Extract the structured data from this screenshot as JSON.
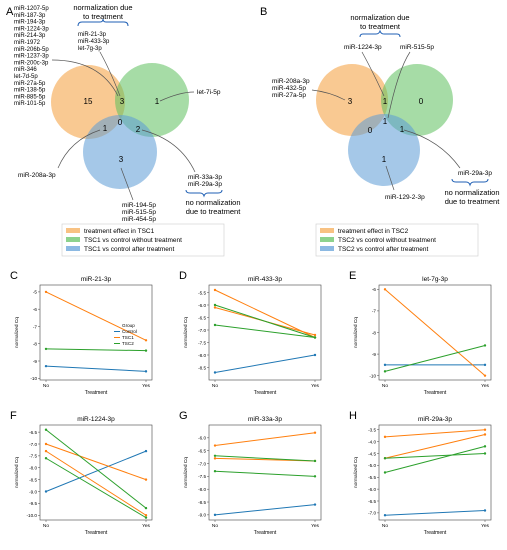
{
  "panelA": {
    "letter": "A",
    "mirna_list": [
      "miR-1207-5p",
      "miR-187-3p",
      "miR-194-3p",
      "miR-1224-3p",
      "miR-214-3p",
      "miR-1972",
      "miR-206b-5p",
      "miR-1237-3p",
      "miR-200c-3p",
      "miR-346",
      "let-7d-5p",
      "miR-27a-5p",
      "miR-138-5p",
      "miR-885-5p",
      "miR-101-5p"
    ],
    "norm_label": [
      "normalization due",
      "to treatment"
    ],
    "norm_list": [
      "miR-21-3p",
      "miR-433-3p",
      "let-7g-3p"
    ],
    "counts": {
      "orange_only": "15",
      "orange_green": "3",
      "green_only": "1",
      "orange_blue": "1",
      "center": "0",
      "green_blue": "2",
      "blue_only": "3"
    },
    "callout_let7i": "let-7i-5p",
    "callout_208a": "miR-208a-3p",
    "blue_list": [
      "miR-194-5p",
      "miR-515-5p",
      "miR-454-5p"
    ],
    "gb_list": [
      "miR-33a-3p",
      "miR-29a-3p"
    ],
    "no_norm": [
      "no normalization",
      "due to treatment"
    ],
    "legend": [
      "treatment effect in TSC1",
      "TSC1 vs control without treatment",
      "TSC1 vs control after treatment"
    ]
  },
  "panelB": {
    "letter": "B",
    "norm_label": [
      "normalization due",
      "to treatment"
    ],
    "callout_1224": "miR-1224-3p",
    "callout_515": "miR-515-5p",
    "orange_list": [
      "miR-208a-3p",
      "miR-432-5p",
      "miR-27a-5p"
    ],
    "counts": {
      "orange_only": "3",
      "orange_green": "1",
      "green_only": "0",
      "orange_blue": "0",
      "center": "1",
      "green_blue": "1",
      "blue_only": "1"
    },
    "callout_129": "miR-129-2-3p",
    "callout_29a": "miR-29a-3p",
    "no_norm": [
      "no normalization",
      "due to treatment"
    ],
    "legend": [
      "treatment effect in TSC2",
      "TSC2 vs control without treatment",
      "TSC2 vs control after treatment"
    ]
  },
  "colors": {
    "orange": "#f5a84f",
    "green": "#5cbf5c",
    "blue": "#5b9bd5",
    "control": "#1f77b4",
    "tsc1": "#ff7f0e",
    "tsc2": "#2ca02c"
  },
  "common": {
    "xticks": [
      "No",
      "Yes"
    ],
    "xlabel": "Treatment",
    "ylabel": "normalized Cq"
  },
  "chart_data": [
    {
      "letter": "C",
      "type": "line",
      "title": "miR-21-3p",
      "x": [
        "No",
        "Yes"
      ],
      "ylim": [
        -10.1,
        -4.6
      ],
      "yticks": [
        {
          "v": -5,
          "l": "-5"
        },
        {
          "v": -6,
          "l": "-6"
        },
        {
          "v": -7,
          "l": "-7"
        },
        {
          "v": -8,
          "l": "-8"
        },
        {
          "v": -9,
          "l": "-9"
        },
        {
          "v": -10,
          "l": "-10"
        }
      ],
      "legend": {
        "title": "Group",
        "items": [
          "Control",
          "TSC1",
          "TSC2"
        ]
      },
      "series": [
        {
          "name": "Control",
          "color": "#1f77b4",
          "values": [
            [
              -9.3,
              -9.6
            ]
          ]
        },
        {
          "name": "TSC1",
          "color": "#ff7f0e",
          "values": [
            [
              -5.0,
              -7.8
            ]
          ]
        },
        {
          "name": "TSC2",
          "color": "#2ca02c",
          "values": [
            [
              -8.3,
              -8.4
            ]
          ]
        }
      ]
    },
    {
      "letter": "D",
      "type": "line",
      "title": "miR-433-3p",
      "x": [
        "No",
        "Yes"
      ],
      "ylim": [
        -9.0,
        -5.2
      ],
      "yticks": [
        {
          "v": -5.5,
          "l": "-5.5"
        },
        {
          "v": -6.0,
          "l": "-6.0"
        },
        {
          "v": -6.5,
          "l": "-6.5"
        },
        {
          "v": -7.0,
          "l": "-7.0"
        },
        {
          "v": -7.5,
          "l": "-7.5"
        },
        {
          "v": -8.0,
          "l": "-8.0"
        },
        {
          "v": -8.5,
          "l": "-8.5"
        }
      ],
      "series": [
        {
          "name": "Control",
          "color": "#1f77b4",
          "values": [
            [
              -8.7,
              -8.0
            ]
          ]
        },
        {
          "name": "TSC1",
          "color": "#ff7f0e",
          "values": [
            [
              -5.4,
              -7.3
            ],
            [
              -6.1,
              -7.2
            ]
          ]
        },
        {
          "name": "TSC2",
          "color": "#2ca02c",
          "values": [
            [
              -6.0,
              -7.3
            ],
            [
              -6.8,
              -7.3
            ]
          ]
        }
      ]
    },
    {
      "letter": "E",
      "type": "line",
      "title": "let-7g-3p",
      "x": [
        "No",
        "Yes"
      ],
      "ylim": [
        -10.2,
        -5.8
      ],
      "yticks": [
        {
          "v": -6,
          "l": "-6"
        },
        {
          "v": -7,
          "l": "-7"
        },
        {
          "v": -8,
          "l": "-8"
        },
        {
          "v": -9,
          "l": "-9"
        },
        {
          "v": -10,
          "l": "-10"
        }
      ],
      "series": [
        {
          "name": "Control",
          "color": "#1f77b4",
          "values": [
            [
              -9.5,
              -9.5
            ]
          ]
        },
        {
          "name": "TSC1",
          "color": "#ff7f0e",
          "values": [
            [
              -6.0,
              -10.0
            ]
          ]
        },
        {
          "name": "TSC2",
          "color": "#2ca02c",
          "values": [
            [
              -9.8,
              -8.6
            ]
          ]
        }
      ]
    },
    {
      "letter": "F",
      "type": "line",
      "title": "miR-1224-3p",
      "x": [
        "No",
        "Yes"
      ],
      "ylim": [
        -10.2,
        -6.2
      ],
      "yticks": [
        {
          "v": -6.5,
          "l": "-6.5"
        },
        {
          "v": -7.0,
          "l": "-7.0"
        },
        {
          "v": -7.5,
          "l": "-7.5"
        },
        {
          "v": -8.0,
          "l": "-8.0"
        },
        {
          "v": -8.5,
          "l": "-8.5"
        },
        {
          "v": -9.0,
          "l": "-9.0"
        },
        {
          "v": -9.5,
          "l": "-9.5"
        },
        {
          "v": -10.0,
          "l": "-10.0"
        }
      ],
      "series": [
        {
          "name": "Control",
          "color": "#1f77b4",
          "values": [
            [
              -9.0,
              -7.3
            ]
          ]
        },
        {
          "name": "TSC1",
          "color": "#ff7f0e",
          "values": [
            [
              -7.0,
              -8.5
            ],
            [
              -7.3,
              -10.0
            ]
          ]
        },
        {
          "name": "TSC2",
          "color": "#2ca02c",
          "values": [
            [
              -6.4,
              -9.7
            ],
            [
              -7.6,
              -10.1
            ]
          ]
        }
      ]
    },
    {
      "letter": "G",
      "type": "line",
      "title": "miR-33a-3p",
      "x": [
        "No",
        "Yes"
      ],
      "ylim": [
        -9.2,
        -5.5
      ],
      "yticks": [
        {
          "v": -6.0,
          "l": "-6.0"
        },
        {
          "v": -6.5,
          "l": "-6.5"
        },
        {
          "v": -7.0,
          "l": "-7.0"
        },
        {
          "v": -7.5,
          "l": "-7.5"
        },
        {
          "v": -8.0,
          "l": "-8.0"
        },
        {
          "v": -8.5,
          "l": "-8.5"
        },
        {
          "v": -9.0,
          "l": "-9.0"
        }
      ],
      "series": [
        {
          "name": "Control",
          "color": "#1f77b4",
          "values": [
            [
              -9.0,
              -8.6
            ]
          ]
        },
        {
          "name": "TSC1",
          "color": "#ff7f0e",
          "values": [
            [
              -6.3,
              -5.8
            ],
            [
              -6.8,
              -6.9
            ]
          ]
        },
        {
          "name": "TSC2",
          "color": "#2ca02c",
          "values": [
            [
              -6.7,
              -6.9
            ],
            [
              -7.3,
              -7.5
            ]
          ]
        }
      ]
    },
    {
      "letter": "H",
      "type": "line",
      "title": "miR-29a-3p",
      "x": [
        "No",
        "Yes"
      ],
      "ylim": [
        -7.3,
        -3.3
      ],
      "yticks": [
        {
          "v": -3.5,
          "l": "-3.5"
        },
        {
          "v": -4.0,
          "l": "-4.0"
        },
        {
          "v": -4.5,
          "l": "-4.5"
        },
        {
          "v": -5.0,
          "l": "-5.0"
        },
        {
          "v": -5.5,
          "l": "-5.5"
        },
        {
          "v": -6.0,
          "l": "-6.0"
        },
        {
          "v": -6.5,
          "l": "-6.5"
        },
        {
          "v": -7.0,
          "l": "-7.0"
        }
      ],
      "series": [
        {
          "name": "Control",
          "color": "#1f77b4",
          "values": [
            [
              -7.1,
              -6.9
            ]
          ]
        },
        {
          "name": "TSC1",
          "color": "#ff7f0e",
          "values": [
            [
              -3.8,
              -3.5
            ],
            [
              -4.7,
              -3.7
            ]
          ]
        },
        {
          "name": "TSC2",
          "color": "#2ca02c",
          "values": [
            [
              -4.7,
              -4.5
            ],
            [
              -5.3,
              -4.2
            ]
          ]
        }
      ]
    }
  ]
}
